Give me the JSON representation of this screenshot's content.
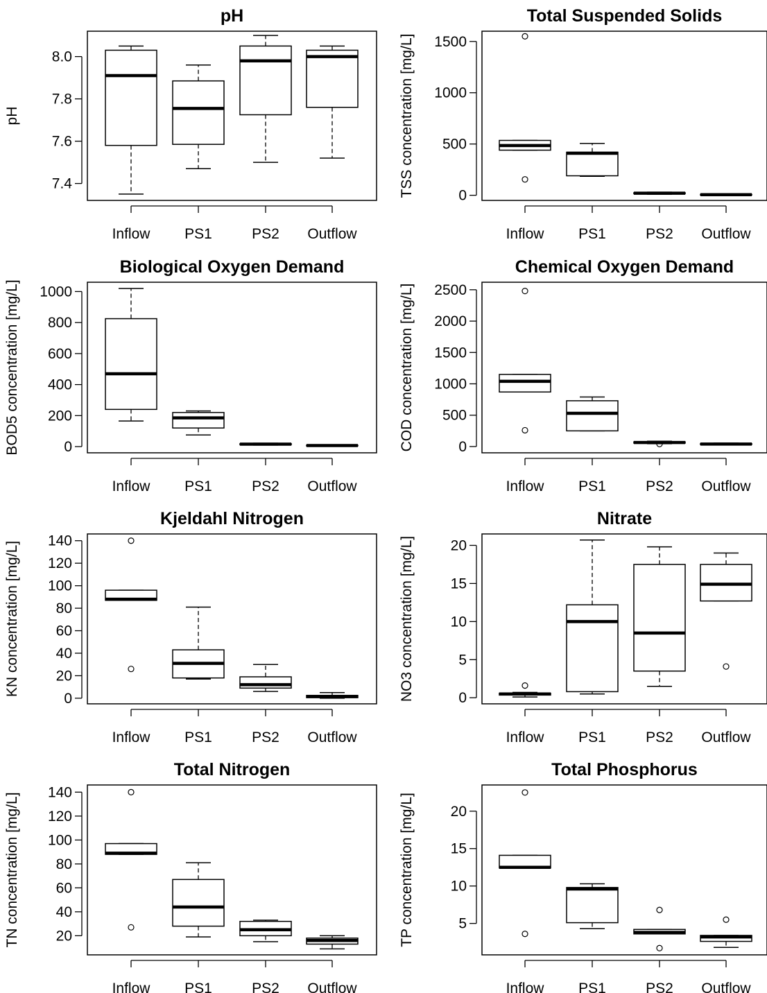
{
  "chart_data": [
    {
      "type": "boxplot",
      "title": "pH",
      "ylabel": "pH",
      "categories": [
        "Inflow",
        "PS1",
        "PS2",
        "Outflow"
      ],
      "ylim": [
        7.32,
        8.12
      ],
      "yticks": [
        7.4,
        7.6,
        7.8,
        8.0
      ],
      "ytick_labels": [
        "7.4",
        "7.6",
        "7.8",
        "8.0"
      ],
      "boxes": [
        {
          "min": 7.35,
          "q1": 7.58,
          "median": 7.91,
          "q3": 8.03,
          "max": 8.05,
          "outliers": []
        },
        {
          "min": 7.47,
          "q1": 7.585,
          "median": 7.755,
          "q3": 7.885,
          "max": 7.96,
          "outliers": []
        },
        {
          "min": 7.5,
          "q1": 7.725,
          "median": 7.98,
          "q3": 8.05,
          "max": 8.1,
          "outliers": []
        },
        {
          "min": 7.52,
          "q1": 7.76,
          "median": 8.0,
          "q3": 8.03,
          "max": 8.05,
          "outliers": []
        }
      ]
    },
    {
      "type": "boxplot",
      "title": "Total Suspended Solids",
      "ylabel": "TSS concentration [mg/L]",
      "categories": [
        "Inflow",
        "PS1",
        "PS2",
        "Outflow"
      ],
      "ylim": [
        -50,
        1600
      ],
      "yticks": [
        0,
        500,
        1000,
        1500
      ],
      "ytick_labels": [
        "0",
        "500",
        "1000",
        "1500"
      ],
      "boxes": [
        {
          "min": 440,
          "q1": 440,
          "median": 485,
          "q3": 535,
          "max": 535,
          "outliers": [
            1550,
            155
          ]
        },
        {
          "min": 185,
          "q1": 190,
          "median": 410,
          "q3": 420,
          "max": 505,
          "outliers": []
        },
        {
          "min": 10,
          "q1": 15,
          "median": 20,
          "q3": 25,
          "max": 30,
          "outliers": []
        },
        {
          "min": 2,
          "q1": 4,
          "median": 6,
          "q3": 9,
          "max": 12,
          "outliers": []
        }
      ]
    },
    {
      "type": "boxplot",
      "title": "Biological Oxygen Demand",
      "ylabel": "BOD5 concentration [mg/L]",
      "categories": [
        "Inflow",
        "PS1",
        "PS2",
        "Outflow"
      ],
      "ylim": [
        -40,
        1060
      ],
      "yticks": [
        0,
        200,
        400,
        600,
        800,
        1000
      ],
      "ytick_labels": [
        "0",
        "200",
        "400",
        "600",
        "800",
        "1000"
      ],
      "boxes": [
        {
          "min": 165,
          "q1": 240,
          "median": 470,
          "q3": 825,
          "max": 1020,
          "outliers": []
        },
        {
          "min": 75,
          "q1": 120,
          "median": 185,
          "q3": 220,
          "max": 230,
          "outliers": []
        },
        {
          "min": 10,
          "q1": 12,
          "median": 16,
          "q3": 19,
          "max": 22,
          "outliers": []
        },
        {
          "min": 3,
          "q1": 5,
          "median": 7,
          "q3": 9,
          "max": 11,
          "outliers": []
        }
      ]
    },
    {
      "type": "boxplot",
      "title": "Chemical Oxygen Demand",
      "ylabel": "COD concentration [mg/L]",
      "categories": [
        "Inflow",
        "PS1",
        "PS2",
        "Outflow"
      ],
      "ylim": [
        -100,
        2620
      ],
      "yticks": [
        0,
        500,
        1000,
        1500,
        2000,
        2500
      ],
      "ytick_labels": [
        "0",
        "500",
        "1000",
        "1500",
        "2000",
        "2500"
      ],
      "boxes": [
        {
          "min": 870,
          "q1": 870,
          "median": 1040,
          "q3": 1150,
          "max": 1150,
          "outliers": [
            2480,
            260
          ]
        },
        {
          "min": 250,
          "q1": 250,
          "median": 530,
          "q3": 730,
          "max": 790,
          "outliers": []
        },
        {
          "min": 45,
          "q1": 55,
          "median": 65,
          "q3": 75,
          "max": 85,
          "outliers": [
            40
          ]
        },
        {
          "min": 25,
          "q1": 32,
          "median": 40,
          "q3": 48,
          "max": 55,
          "outliers": []
        }
      ]
    },
    {
      "type": "boxplot",
      "title": "Kjeldahl Nitrogen",
      "ylabel": "KN concentration [mg/L]",
      "categories": [
        "Inflow",
        "PS1",
        "PS2",
        "Outflow"
      ],
      "ylim": [
        -5,
        146
      ],
      "yticks": [
        0,
        20,
        40,
        60,
        80,
        100,
        120,
        140
      ],
      "ytick_labels": [
        "0",
        "20",
        "40",
        "60",
        "80",
        "100",
        "120",
        "140"
      ],
      "boxes": [
        {
          "min": 87,
          "q1": 87,
          "median": 88,
          "q3": 96,
          "max": 96,
          "outliers": [
            140,
            26
          ]
        },
        {
          "min": 17,
          "q1": 18,
          "median": 31,
          "q3": 43,
          "max": 81,
          "outliers": []
        },
        {
          "min": 6,
          "q1": 9,
          "median": 12,
          "q3": 19,
          "max": 30,
          "outliers": []
        },
        {
          "min": 0,
          "q1": 0.5,
          "median": 1.5,
          "q3": 2.5,
          "max": 5,
          "outliers": []
        }
      ]
    },
    {
      "type": "boxplot",
      "title": "Nitrate",
      "ylabel": "NO3 concentration [mg/L]",
      "categories": [
        "Inflow",
        "PS1",
        "PS2",
        "Outflow"
      ],
      "ylim": [
        -0.8,
        21.5
      ],
      "yticks": [
        0,
        5,
        10,
        15,
        20
      ],
      "ytick_labels": [
        "0",
        "5",
        "10",
        "15",
        "20"
      ],
      "boxes": [
        {
          "min": 0.1,
          "q1": 0.35,
          "median": 0.5,
          "q3": 0.6,
          "max": 0.7,
          "outliers": [
            1.6
          ]
        },
        {
          "min": 0.5,
          "q1": 0.8,
          "median": 10,
          "q3": 12.2,
          "max": 20.7,
          "outliers": []
        },
        {
          "min": 1.5,
          "q1": 3.5,
          "median": 8.5,
          "q3": 17.5,
          "max": 19.8,
          "outliers": []
        },
        {
          "min": 12.7,
          "q1": 12.7,
          "median": 14.9,
          "q3": 17.5,
          "max": 19,
          "outliers": [
            4.1
          ]
        }
      ]
    },
    {
      "type": "boxplot",
      "title": "Total Nitrogen",
      "ylabel": "TN concentration [mg/L]",
      "categories": [
        "Inflow",
        "PS1",
        "PS2",
        "Outflow"
      ],
      "ylim": [
        4,
        146
      ],
      "yticks": [
        20,
        40,
        60,
        80,
        100,
        120,
        140
      ],
      "ytick_labels": [
        "20",
        "40",
        "60",
        "80",
        "100",
        "120",
        "140"
      ],
      "boxes": [
        {
          "min": 88,
          "q1": 88,
          "median": 89,
          "q3": 97,
          "max": 97,
          "outliers": [
            140,
            27
          ]
        },
        {
          "min": 19,
          "q1": 28,
          "median": 44,
          "q3": 67,
          "max": 81,
          "outliers": []
        },
        {
          "min": 15,
          "q1": 20,
          "median": 25,
          "q3": 32,
          "max": 33,
          "outliers": []
        },
        {
          "min": 9,
          "q1": 13,
          "median": 16,
          "q3": 18,
          "max": 20,
          "outliers": []
        }
      ]
    },
    {
      "type": "boxplot",
      "title": "Total Phosphorus",
      "ylabel": "TP concentration [mg/L]",
      "categories": [
        "Inflow",
        "PS1",
        "PS2",
        "Outflow"
      ],
      "ylim": [
        0.8,
        23.5
      ],
      "yticks": [
        5,
        10,
        15,
        20
      ],
      "ytick_labels": [
        "5",
        "10",
        "15",
        "20"
      ],
      "boxes": [
        {
          "min": 12.4,
          "q1": 12.4,
          "median": 12.5,
          "q3": 14.1,
          "max": 14.1,
          "outliers": [
            22.5,
            3.6
          ]
        },
        {
          "min": 4.3,
          "q1": 5.1,
          "median": 9.6,
          "q3": 9.8,
          "max": 10.3,
          "outliers": []
        },
        {
          "min": 3.6,
          "q1": 3.6,
          "median": 3.8,
          "q3": 4.2,
          "max": 4.2,
          "outliers": [
            6.8,
            1.7
          ]
        },
        {
          "min": 1.8,
          "q1": 2.6,
          "median": 3.2,
          "q3": 3.4,
          "max": 3.4,
          "outliers": [
            5.5
          ]
        }
      ]
    }
  ]
}
